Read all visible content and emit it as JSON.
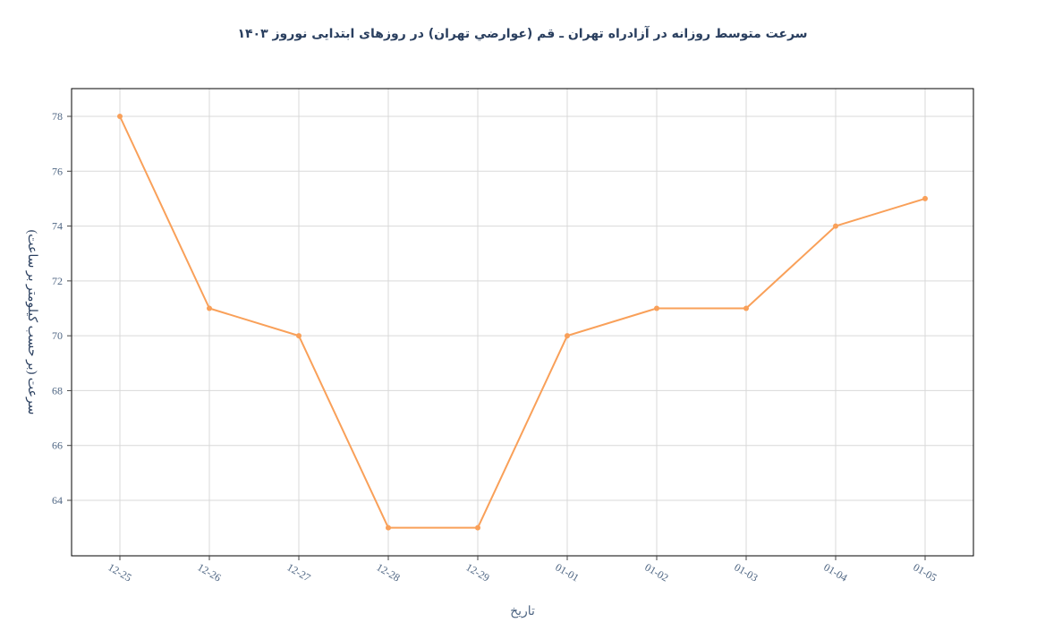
{
  "chart_data": {
    "type": "line",
    "title": "سرعت متوسط روزانه در آزادراه تهران ـ قم (عوارضي تهران) در روزهای ابتدایی نوروز ۱۴۰۳",
    "xlabel": "تاریخ",
    "ylabel": "سرعت (بر حسب کیلومتر بر ساعت)",
    "categories": [
      "12-25",
      "12-26",
      "12-27",
      "12-28",
      "12-29",
      "01-01",
      "01-02",
      "01-03",
      "01-04",
      "01-05"
    ],
    "series": [
      {
        "values": [
          78,
          71,
          70,
          63,
          63,
          70,
          71,
          71,
          74,
          75
        ],
        "color": "#f9a059"
      }
    ],
    "yticks": [
      64,
      66,
      68,
      70,
      72,
      74,
      76,
      78
    ],
    "ylim": [
      62,
      79
    ],
    "grid": true,
    "legend": "none"
  }
}
